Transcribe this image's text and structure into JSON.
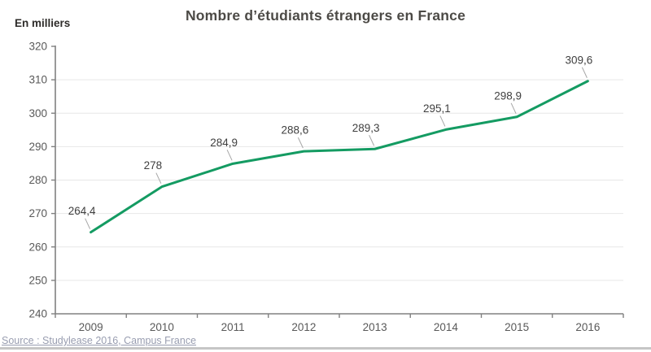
{
  "chart_data": {
    "type": "line",
    "title": "Nombre d’étudiants étrangers en France",
    "ylabel": "En milliers",
    "xlabel": "",
    "categories": [
      "2009",
      "2010",
      "2011",
      "2012",
      "2013",
      "2014",
      "2015",
      "2016"
    ],
    "values": [
      264.4,
      278,
      284.9,
      288.6,
      289.3,
      295.1,
      298.9,
      309.6
    ],
    "value_labels": [
      "264,4",
      "278",
      "284,9",
      "288,6",
      "289,3",
      "295,1",
      "298,9",
      "309,6"
    ],
    "ylim": [
      240,
      320
    ],
    "y_ticks": [
      240,
      250,
      260,
      270,
      280,
      290,
      300,
      310,
      320
    ],
    "grid": "horizontal",
    "legend": "none"
  },
  "footer": {
    "source": "Source : Studylease 2016, Campus France"
  },
  "colors": {
    "line": "#149b62",
    "grid": "#e7e7e7",
    "axis": "#808080",
    "tick_text": "#595959",
    "data_label_text": "#3f3f3f",
    "title_text": "#4c4a46",
    "source_text": "#989db0",
    "leader_line": "#a6a6a6",
    "bottom_rule": "#c6c6c6"
  }
}
